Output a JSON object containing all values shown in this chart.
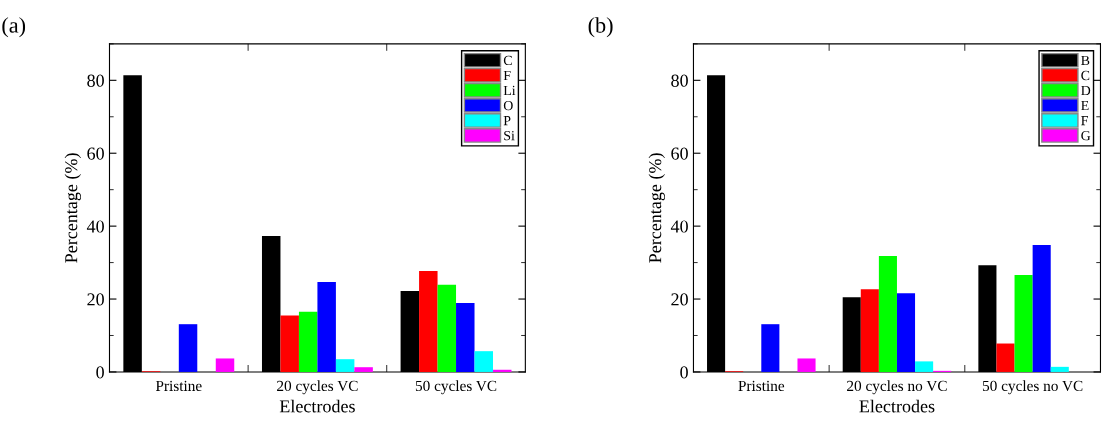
{
  "chart_data": [
    {
      "type": "bar",
      "title": "(a)",
      "xlabel": "Electrodes",
      "ylabel": "Percentage (%)",
      "categories": [
        "Pristine",
        "20 cycles VC",
        "50 cycles VC"
      ],
      "ylim": [
        0,
        90
      ],
      "yticks": [
        0,
        20,
        40,
        60,
        80
      ],
      "legend": "top right",
      "grid": false,
      "series": [
        {
          "name": "C",
          "color": "#000000",
          "values": [
            81.4,
            37.3,
            22.2
          ]
        },
        {
          "name": "F",
          "color": "#ff0000",
          "values": [
            0.2,
            15.5,
            27.7
          ]
        },
        {
          "name": "Li",
          "color": "#00ff00",
          "values": [
            0,
            16.5,
            23.9
          ]
        },
        {
          "name": "O",
          "color": "#0000ff",
          "values": [
            13.1,
            24.7,
            18.9
          ]
        },
        {
          "name": "P",
          "color": "#00ffff",
          "values": [
            0,
            3.5,
            5.7
          ]
        },
        {
          "name": "Si",
          "color": "#ff00ff",
          "values": [
            3.7,
            1.3,
            0.6
          ]
        }
      ]
    },
    {
      "type": "bar",
      "title": "(b)",
      "xlabel": "Electrodes",
      "ylabel": "Percentage (%)",
      "categories": [
        "Pristine",
        "20 cycles no VC",
        "50 cycles no VC"
      ],
      "ylim": [
        0,
        90
      ],
      "yticks": [
        0,
        20,
        40,
        60,
        80
      ],
      "legend": "top right",
      "grid": false,
      "series": [
        {
          "name": "B",
          "color": "#000000",
          "values": [
            81.4,
            20.5,
            29.3
          ]
        },
        {
          "name": "C",
          "color": "#ff0000",
          "values": [
            0.2,
            22.7,
            7.8
          ]
        },
        {
          "name": "D",
          "color": "#00ff00",
          "values": [
            0,
            31.8,
            26.6
          ]
        },
        {
          "name": "E",
          "color": "#0000ff",
          "values": [
            13.1,
            21.6,
            34.8
          ]
        },
        {
          "name": "F",
          "color": "#00ffff",
          "values": [
            0,
            2.9,
            1.4
          ]
        },
        {
          "name": "G",
          "color": "#ff00ff",
          "values": [
            3.7,
            0.3,
            0
          ]
        }
      ]
    }
  ]
}
